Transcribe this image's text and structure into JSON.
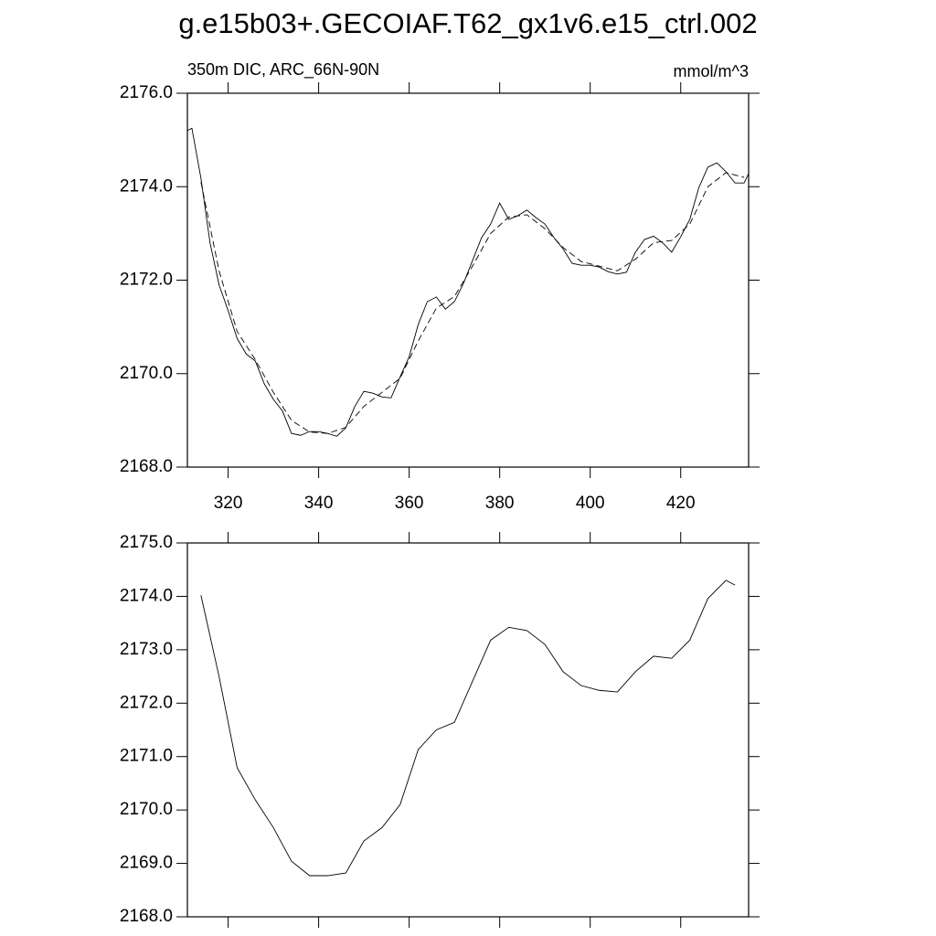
{
  "chart_data": [
    {
      "type": "line",
      "title": "g.e15b03+.GECOIAF.T62_gx1v6.e15_ctrl.002",
      "left_label": "350m DIC, ARC_66N-90N",
      "right_label": "mmol/m^3",
      "xlim": [
        311,
        435
      ],
      "xticks": [
        320,
        340,
        360,
        380,
        400,
        420
      ],
      "xtick_labels": true,
      "ylim": [
        2168,
        2176
      ],
      "yticks": [
        {
          "value": 2168,
          "label": "2168.0"
        },
        {
          "value": 2170,
          "label": "2170.0"
        },
        {
          "value": 2172,
          "label": "2172.0"
        },
        {
          "value": 2174,
          "label": "2174.0"
        },
        {
          "value": 2176,
          "label": "2176.0"
        }
      ],
      "series": [
        {
          "color": "#000000",
          "dashed": false,
          "x": [
            311,
            312,
            314,
            316,
            318,
            320,
            322,
            324,
            326,
            328,
            330,
            332,
            334,
            336,
            338,
            340,
            342,
            344,
            346,
            348,
            350,
            352,
            354,
            356,
            358,
            360,
            362,
            364,
            366,
            368,
            370,
            372,
            374,
            376,
            378,
            380,
            382,
            384,
            386,
            388,
            390,
            392,
            394,
            396,
            398,
            400,
            402,
            404,
            406,
            408,
            410,
            412,
            414,
            416,
            418,
            420,
            422,
            424,
            426,
            428,
            430,
            432,
            434,
            435
          ],
          "values": [
            2175.2,
            2175.25,
            2174.18,
            2172.8,
            2171.9,
            2171.35,
            2170.75,
            2170.42,
            2170.27,
            2169.78,
            2169.45,
            2169.2,
            2168.72,
            2168.68,
            2168.76,
            2168.76,
            2168.72,
            2168.66,
            2168.84,
            2169.3,
            2169.62,
            2169.58,
            2169.5,
            2169.48,
            2169.93,
            2170.36,
            2171.05,
            2171.54,
            2171.64,
            2171.38,
            2171.54,
            2171.93,
            2172.42,
            2172.91,
            2173.2,
            2173.65,
            2173.3,
            2173.38,
            2173.5,
            2173.34,
            2173.2,
            2172.91,
            2172.67,
            2172.36,
            2172.32,
            2172.32,
            2172.28,
            2172.18,
            2172.13,
            2172.17,
            2172.6,
            2172.87,
            2172.94,
            2172.8,
            2172.6,
            2172.93,
            2173.3,
            2173.98,
            2174.42,
            2174.51,
            2174.32,
            2174.08,
            2174.08,
            2174.28
          ]
        },
        {
          "color": "#000000",
          "dashed": true,
          "x": [
            314,
            318,
            322,
            326,
            330,
            334,
            338,
            342,
            346,
            350,
            354,
            358,
            362,
            366,
            370,
            374,
            378,
            382,
            386,
            390,
            394,
            398,
            402,
            406,
            410,
            414,
            418,
            422,
            426,
            430,
            434
          ],
          "values": [
            2174.1,
            2172.2,
            2170.9,
            2170.3,
            2169.6,
            2169.0,
            2168.75,
            2168.72,
            2168.85,
            2169.3,
            2169.6,
            2169.9,
            2170.7,
            2171.4,
            2171.65,
            2172.3,
            2173.0,
            2173.35,
            2173.4,
            2173.1,
            2172.7,
            2172.4,
            2172.3,
            2172.2,
            2172.45,
            2172.8,
            2172.85,
            2173.2,
            2174.0,
            2174.3,
            2174.2
          ]
        }
      ]
    },
    {
      "type": "line",
      "xlim": [
        311,
        435
      ],
      "xticks": [
        320,
        340,
        360,
        380,
        400,
        420
      ],
      "xtick_labels": false,
      "ylim": [
        2168,
        2175
      ],
      "yticks": [
        {
          "value": 2168,
          "label": "2168.0"
        },
        {
          "value": 2169,
          "label": "2169.0"
        },
        {
          "value": 2170,
          "label": "2170.0"
        },
        {
          "value": 2171,
          "label": "2171.0"
        },
        {
          "value": 2172,
          "label": "2172.0"
        },
        {
          "value": 2173,
          "label": "2173.0"
        },
        {
          "value": 2174,
          "label": "2174.0"
        },
        {
          "value": 2175,
          "label": "2175.0"
        }
      ],
      "series": [
        {
          "color": "#000000",
          "dashed": false,
          "x": [
            314,
            318,
            322,
            326,
            330,
            334,
            338,
            342,
            346,
            350,
            354,
            358,
            362,
            366,
            370,
            374,
            378,
            382,
            386,
            390,
            394,
            398,
            402,
            406,
            410,
            414,
            418,
            422,
            426,
            430,
            432
          ],
          "values": [
            2174.02,
            2172.5,
            2170.79,
            2170.19,
            2169.67,
            2169.04,
            2168.77,
            2168.77,
            2168.82,
            2169.42,
            2169.67,
            2170.1,
            2171.13,
            2171.5,
            2171.64,
            2172.41,
            2173.18,
            2173.42,
            2173.36,
            2173.1,
            2172.59,
            2172.33,
            2172.24,
            2172.21,
            2172.59,
            2172.88,
            2172.84,
            2173.18,
            2173.96,
            2174.3,
            2174.21
          ]
        }
      ]
    }
  ]
}
